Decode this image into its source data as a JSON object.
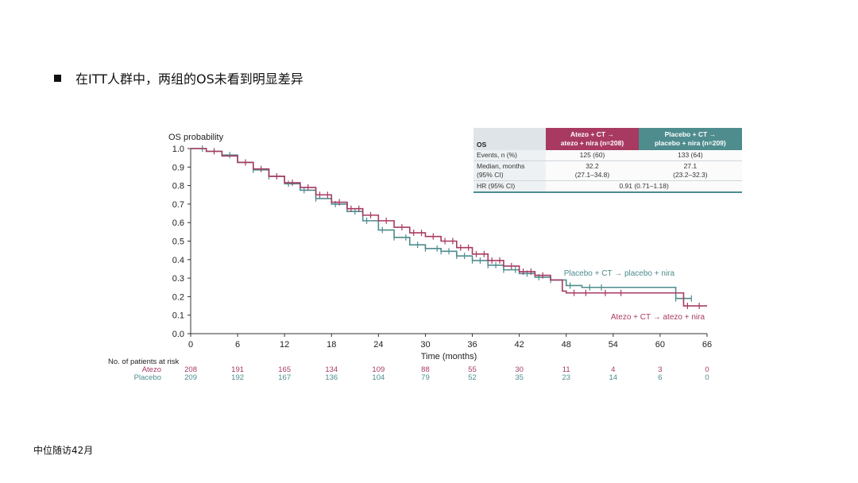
{
  "heading": "在ITT人群中，两组的OS未看到明显差异",
  "footnote": "中位随访42月",
  "colors": {
    "atezo": "#a83a62",
    "placebo": "#4e8c8e"
  },
  "table": {
    "header_label": "OS",
    "col1": [
      "Atezo + CT →",
      "atezo + nira (n=208)"
    ],
    "col2": [
      "Placebo + CT →",
      "placebo + nira (n=209)"
    ],
    "rows": [
      {
        "label": [
          "Events, n (%)"
        ],
        "v1": [
          "125 (60)"
        ],
        "v2": [
          "133 (64)"
        ]
      },
      {
        "label": [
          "Median, months",
          "(95% CI)"
        ],
        "v1": [
          "32.2",
          "(27.1–34.8)"
        ],
        "v2": [
          "27.1",
          "(23.2–32.3)"
        ]
      }
    ],
    "hr_label": "HR (95% CI)",
    "hr_value": "0.91 (0.71–1.18)"
  },
  "chart_data": {
    "type": "line",
    "title": "",
    "xlabel": "Time (months)",
    "ylabel": "OS probability",
    "xlim": [
      0,
      66
    ],
    "ylim": [
      0,
      1.0
    ],
    "xticks": [
      0,
      6,
      12,
      18,
      24,
      30,
      36,
      42,
      48,
      54,
      60,
      66
    ],
    "yticks": [
      0.0,
      0.1,
      0.2,
      0.3,
      0.4,
      0.5,
      0.6,
      0.7,
      0.8,
      0.9,
      1.0
    ],
    "ytick_labels": [
      "0.0",
      "0.1",
      "0.2",
      "0.3",
      "0.4",
      "0.5",
      "0.6",
      "0.7",
      "0.8",
      "0.9",
      "1.0"
    ],
    "series": [
      {
        "name": "Atezo + CT → atezo + nira",
        "color": "#a83a62",
        "x": [
          0,
          2,
          4,
          6,
          8,
          10,
          12,
          14,
          16,
          18,
          20,
          22,
          24,
          26,
          28,
          30,
          32,
          34,
          36,
          38,
          40,
          42,
          44,
          46,
          47.5,
          48,
          50,
          52,
          54,
          56,
          58,
          60,
          62,
          63,
          66
        ],
        "y": [
          1.0,
          0.985,
          0.96,
          0.925,
          0.89,
          0.85,
          0.815,
          0.79,
          0.75,
          0.71,
          0.675,
          0.64,
          0.61,
          0.575,
          0.545,
          0.525,
          0.5,
          0.465,
          0.43,
          0.395,
          0.365,
          0.335,
          0.315,
          0.29,
          0.23,
          0.22,
          0.22,
          0.22,
          0.22,
          0.22,
          0.22,
          0.22,
          0.22,
          0.15,
          0.15
        ],
        "censor_x": [
          3,
          7,
          9,
          11,
          13,
          15,
          16.5,
          17.5,
          19,
          20.5,
          21.5,
          23,
          25,
          27,
          28.5,
          29.5,
          31,
          32.5,
          33.5,
          34.5,
          35.5,
          36.5,
          37.5,
          38.5,
          39.5,
          41,
          42.5,
          43.5,
          45,
          49,
          50.5,
          53,
          55,
          63.5,
          65
        ]
      },
      {
        "name": "Placebo + CT → placebo + nira",
        "color": "#4e8c8e",
        "x": [
          0,
          2,
          4,
          6,
          8,
          10,
          12,
          14,
          16,
          18,
          20,
          22,
          24,
          26,
          28,
          30,
          32,
          34,
          36,
          38,
          40,
          42,
          44,
          46,
          48,
          50,
          52,
          54,
          56,
          58,
          60,
          62,
          63,
          64
        ],
        "y": [
          1.0,
          0.985,
          0.965,
          0.925,
          0.885,
          0.85,
          0.81,
          0.775,
          0.73,
          0.7,
          0.66,
          0.61,
          0.56,
          0.52,
          0.48,
          0.46,
          0.445,
          0.42,
          0.395,
          0.37,
          0.345,
          0.325,
          0.305,
          0.29,
          0.26,
          0.25,
          0.25,
          0.25,
          0.25,
          0.25,
          0.25,
          0.19,
          0.19,
          0.19
        ],
        "censor_x": [
          1.5,
          5,
          8,
          10,
          12.5,
          14.5,
          16,
          18.5,
          21,
          22.5,
          24.5,
          26,
          27.5,
          29,
          30,
          31.5,
          32,
          33,
          34,
          35,
          36,
          37,
          38,
          39,
          40,
          41.5,
          43,
          44.5,
          46,
          48.5,
          51,
          52.5,
          62,
          63,
          64
        ]
      }
    ],
    "annotations": [
      {
        "text": "Placebo + CT → placebo + nira",
        "x": 48,
        "y": 0.33,
        "color": "#4e8c8e"
      },
      {
        "text": "Atezo + CT → atezo + nira",
        "x": 54,
        "y": 0.095,
        "color": "#a83a62"
      }
    ],
    "risk_table": {
      "title": "No. of patients at risk",
      "times": [
        0,
        6,
        12,
        18,
        24,
        30,
        36,
        42,
        48,
        54,
        60,
        66
      ],
      "rows": [
        {
          "label": "Atezo",
          "color": "#a83a62",
          "counts": [
            "208",
            "191",
            "165",
            "134",
            "109",
            "88",
            "55",
            "30",
            "11",
            "4",
            "3",
            "0"
          ]
        },
        {
          "label": "Placebo",
          "color": "#4e8c8e",
          "counts": [
            "209",
            "192",
            "167",
            "136",
            "104",
            "79",
            "52",
            "35",
            "23",
            "14",
            "6",
            "0"
          ]
        }
      ]
    }
  }
}
